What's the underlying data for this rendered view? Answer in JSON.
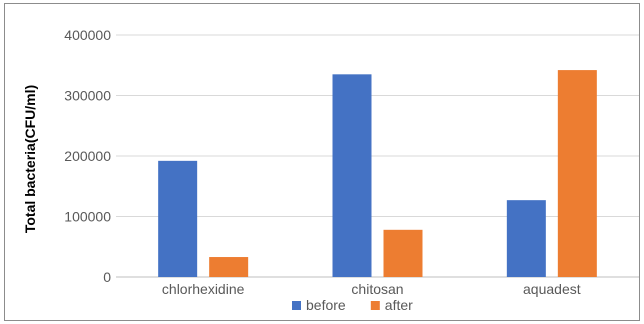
{
  "chart_data": {
    "type": "bar",
    "title": "",
    "xlabel": "",
    "ylabel": "Total bacteria(CFU/ml)",
    "categories": [
      "chlorhexidine",
      "chitosan",
      "aquadest"
    ],
    "series": [
      {
        "name": "before",
        "color": "#4472c4",
        "values": [
          192000,
          335000,
          127000
        ]
      },
      {
        "name": "after",
        "color": "#ed7d31",
        "values": [
          33000,
          78000,
          342000
        ]
      }
    ],
    "ylim": [
      0,
      400000
    ],
    "yticks": [
      "0",
      "100000",
      "200000",
      "300000",
      "400000"
    ],
    "grid": true,
    "legend": "bottom"
  }
}
